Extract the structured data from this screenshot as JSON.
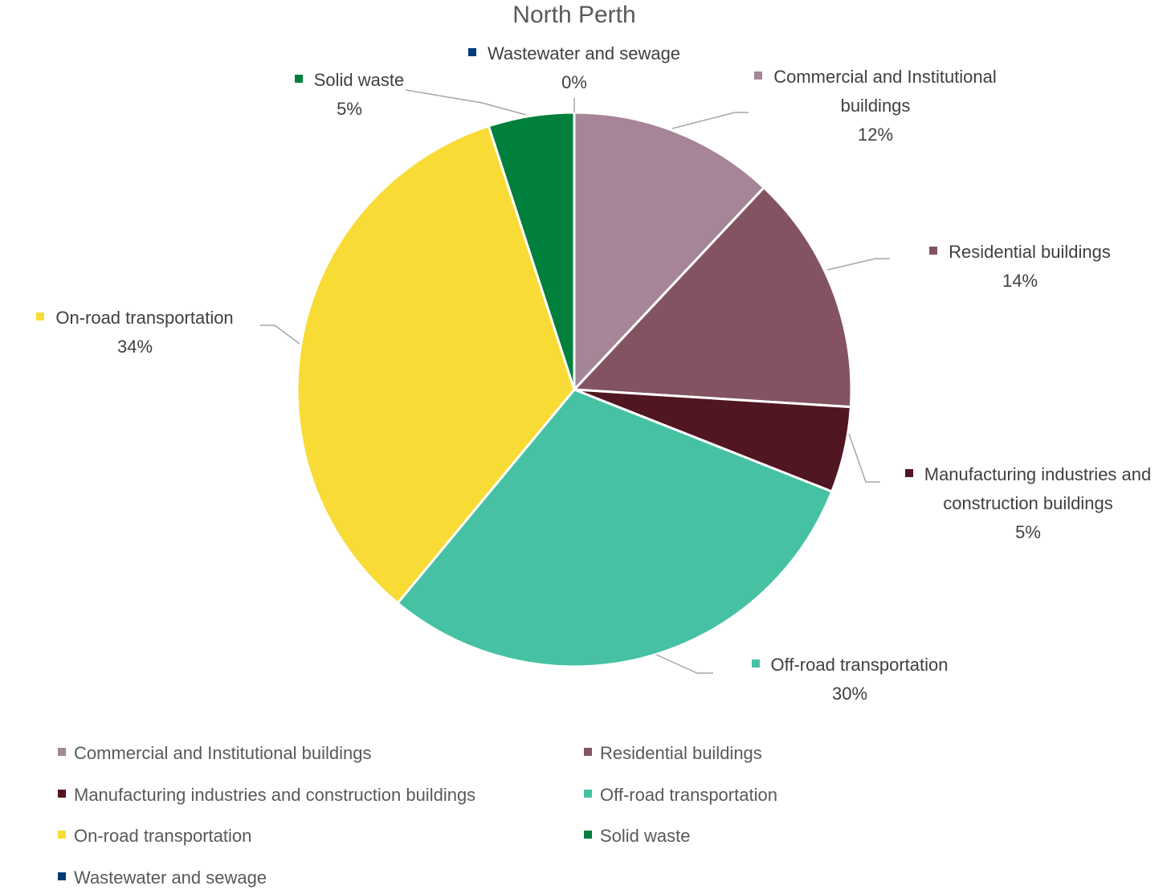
{
  "chart_data": {
    "type": "pie",
    "title": "North Perth",
    "categories": [
      "Commercial and Institutional buildings",
      "Residential buildings",
      "Manufacturing industries and construction buildings",
      "Off-road transportation",
      "On-road transportation",
      "Solid waste",
      "Wastewater and sewage"
    ],
    "values": [
      12,
      14,
      5,
      30,
      34,
      5,
      0
    ],
    "value_labels": [
      "12%",
      "14%",
      "5%",
      "30%",
      "34%",
      "5%",
      "0%"
    ],
    "colors": [
      "#a68598",
      "#845361",
      "#501621",
      "#46c1a4",
      "#f8dc35",
      "#007f3d",
      "#003b7a"
    ],
    "legend": "bottom"
  }
}
